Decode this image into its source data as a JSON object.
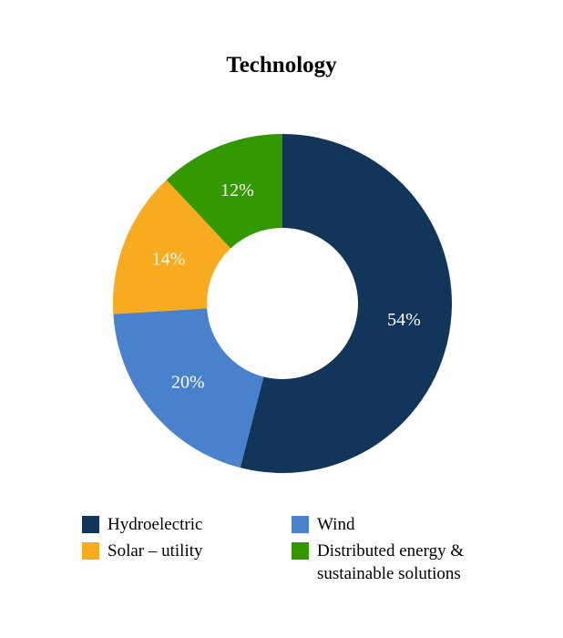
{
  "chart_data": {
    "type": "pie",
    "variant": "donut",
    "title": "Technology",
    "slices": [
      {
        "name": "Hydroelectric",
        "value": 54,
        "label": "54%",
        "color": "#12365a"
      },
      {
        "name": "Wind",
        "value": 20,
        "label": "20%",
        "color": "#4a81cc"
      },
      {
        "name": "Solar – utility",
        "value": 14,
        "label": "14%",
        "color": "#f7ab1f"
      },
      {
        "name": "Distributed energy & sustainable solutions",
        "value": 12,
        "label": "12%",
        "color": "#329901"
      }
    ],
    "legend": {
      "placement": "bottom",
      "entries": [
        {
          "name": "Hydroelectric",
          "color": "#12365a"
        },
        {
          "name": "Wind",
          "color": "#4a81cc"
        },
        {
          "name": "Solar – utility",
          "color": "#f7ab1f"
        },
        {
          "name": "Distributed energy & sustainable solutions",
          "color": "#329901"
        }
      ]
    }
  }
}
